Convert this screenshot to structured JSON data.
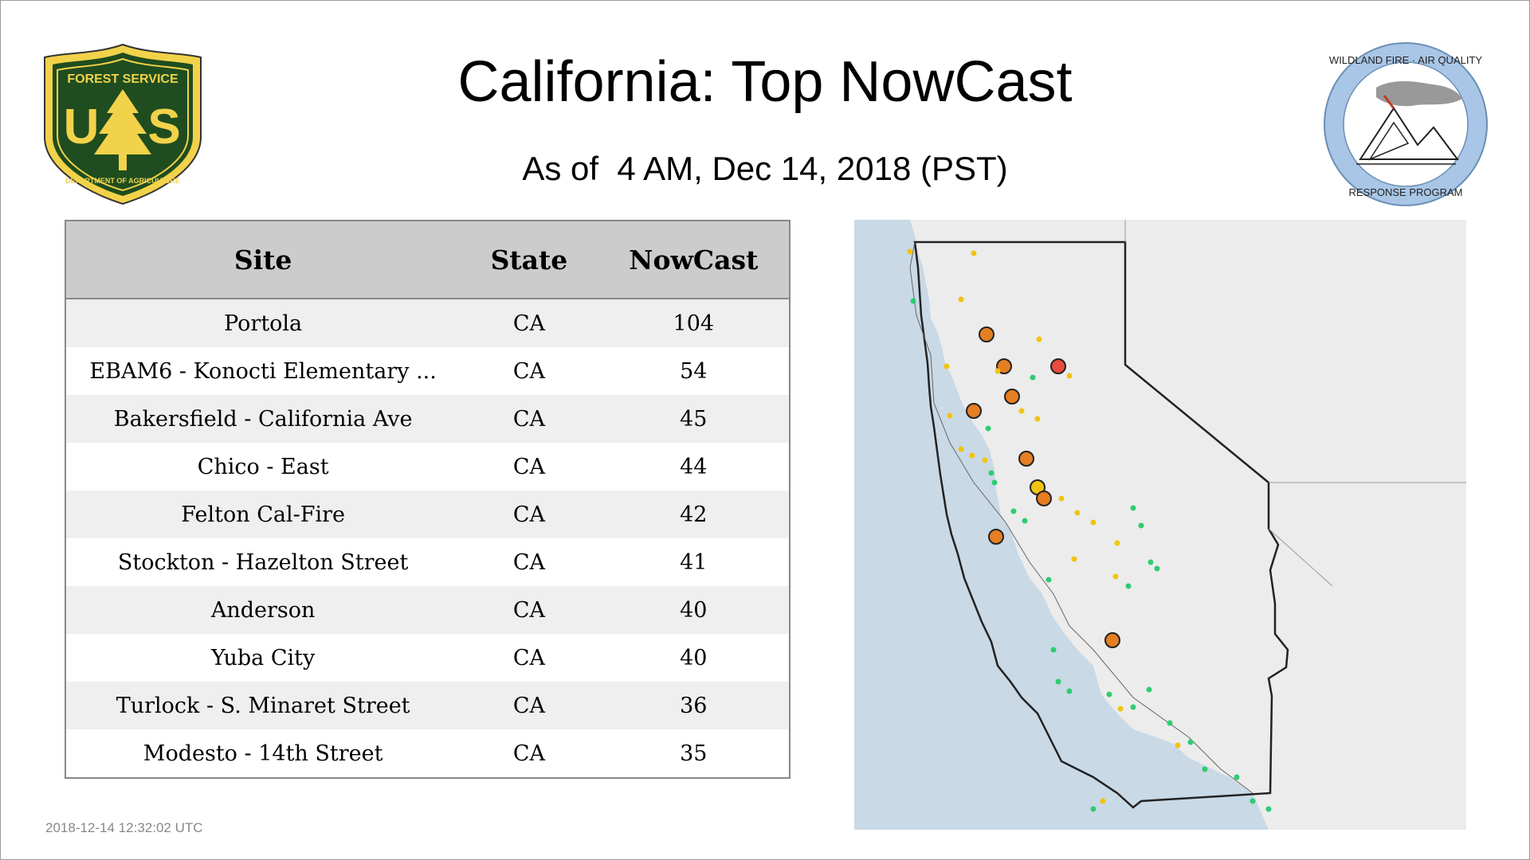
{
  "header": {
    "title": "California: Top NowCast",
    "subtitle": "As of  4 AM, Dec 14, 2018 (PST)"
  },
  "logos": {
    "usfs": {
      "top_text": "FOREST SERVICE",
      "bottom_text": "DEPARTMENT OF AGRICULTURE",
      "letters": "U S"
    },
    "wfaq": {
      "top_text": "WILDLAND FIRE · AIR QUALITY",
      "bottom_text": "RESPONSE PROGRAM"
    }
  },
  "table": {
    "columns": [
      "Site",
      "State",
      "NowCast"
    ],
    "rows": [
      {
        "site": "Portola",
        "state": "CA",
        "nowcast": "104"
      },
      {
        "site": "EBAM6 - Konocti Elementary ...",
        "state": "CA",
        "nowcast": "54"
      },
      {
        "site": "Bakersfield - California Ave",
        "state": "CA",
        "nowcast": "45"
      },
      {
        "site": "Chico - East",
        "state": "CA",
        "nowcast": "44"
      },
      {
        "site": "Felton Cal-Fire",
        "state": "CA",
        "nowcast": "42"
      },
      {
        "site": "Stockton - Hazelton Street",
        "state": "CA",
        "nowcast": "41"
      },
      {
        "site": "Anderson",
        "state": "CA",
        "nowcast": "40"
      },
      {
        "site": "Yuba City",
        "state": "CA",
        "nowcast": "40"
      },
      {
        "site": "Turlock - S. Minaret Street",
        "state": "CA",
        "nowcast": "36"
      },
      {
        "site": "Modesto - 14th Street",
        "state": "CA",
        "nowcast": "35"
      }
    ]
  },
  "footer": {
    "timestamp": "2018-12-14 12:32:02 UTC"
  },
  "colors": {
    "aqi_good": "#2ecc71",
    "aqi_moderate": "#f1c40f",
    "aqi_usg": "#e67e22",
    "aqi_unhealthy": "#e74c3c",
    "no_data": "#b0b0b0",
    "ocean": "#c9d9e6",
    "land": "#ececec",
    "usfs_green": "#1f4d1f",
    "usfs_yellow": "#f2d24a",
    "wfaq_blue": "#a9c6e6"
  }
}
